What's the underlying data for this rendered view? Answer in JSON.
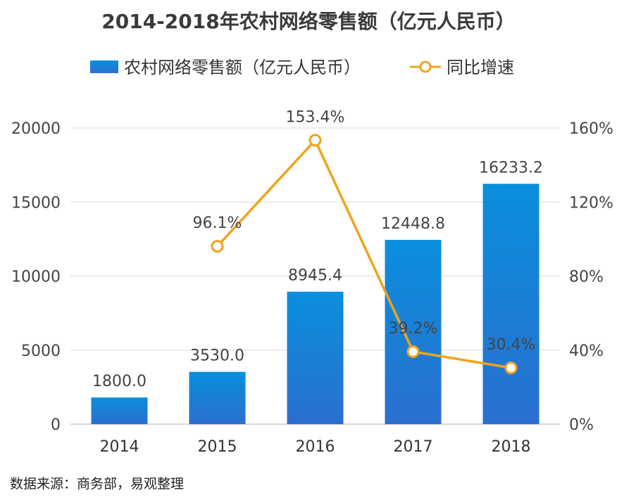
{
  "chart_data": {
    "type": "bar",
    "title": "2014-2018年农村网络零售额（亿元人民币）",
    "categories": [
      "2014",
      "2015",
      "2016",
      "2017",
      "2018"
    ],
    "series": [
      {
        "name": "农村网络零售额（亿元人民币）",
        "type": "bar",
        "axis": "left",
        "values": [
          1800.0,
          3530.0,
          8945.4,
          12448.8,
          16233.2
        ],
        "labels": [
          "1800.0",
          "3530.0",
          "8945.4",
          "12448.8",
          "16233.2"
        ],
        "color": "#1f7fd4"
      },
      {
        "name": "同比增速",
        "type": "line",
        "axis": "right",
        "values": [
          null,
          96.1,
          153.4,
          39.2,
          30.4
        ],
        "labels": [
          "",
          "96.1%",
          "153.4%",
          "39.2%",
          "30.4%"
        ],
        "color": "#f0a31c"
      }
    ],
    "y_left": {
      "min": 0,
      "max": 20000,
      "ticks": [
        "0",
        "5000",
        "10000",
        "15000",
        "20000"
      ]
    },
    "y_right": {
      "min": 0,
      "max": 160,
      "ticks": [
        "0%",
        "40%",
        "80%",
        "120%",
        "160%"
      ]
    },
    "grid": true,
    "legend_position": "top"
  },
  "source_note": "数据来源：商务部，易观整理"
}
